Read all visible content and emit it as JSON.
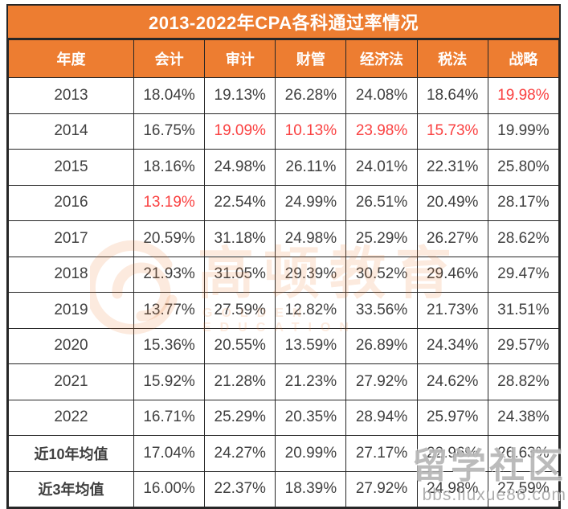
{
  "colors": {
    "accent": "#ED7D31",
    "text": "#404040",
    "red": "#FA4141",
    "border": "#262626",
    "wm_orange": "rgba(237,125,49,0.16)",
    "wm_gray": "rgba(120,120,120,0.5)"
  },
  "chart_data": {
    "type": "table",
    "title": "2013-2022年CPA各科通过率情况",
    "columns": [
      "年度",
      "会计",
      "审计",
      "财管",
      "经济法",
      "税法",
      "战略"
    ],
    "rows": [
      {
        "label": "2013",
        "values": [
          "18.04%",
          "19.13%",
          "26.28%",
          "24.08%",
          "18.64%",
          "19.98%"
        ],
        "red": [
          5
        ],
        "bold": false
      },
      {
        "label": "2014",
        "values": [
          "16.75%",
          "19.09%",
          "10.13%",
          "23.98%",
          "15.73%",
          "19.99%"
        ],
        "red": [
          1,
          2,
          3,
          4
        ],
        "bold": false
      },
      {
        "label": "2015",
        "values": [
          "18.16%",
          "24.98%",
          "26.11%",
          "24.01%",
          "22.31%",
          "25.80%"
        ],
        "red": [],
        "bold": false
      },
      {
        "label": "2016",
        "values": [
          "13.19%",
          "22.54%",
          "24.99%",
          "26.51%",
          "20.49%",
          "28.17%"
        ],
        "red": [
          0
        ],
        "bold": false
      },
      {
        "label": "2017",
        "values": [
          "20.59%",
          "31.18%",
          "24.98%",
          "25.29%",
          "26.27%",
          "28.62%"
        ],
        "red": [],
        "bold": false
      },
      {
        "label": "2018",
        "values": [
          "21.93%",
          "31.05%",
          "29.39%",
          "30.52%",
          "29.46%",
          "29.47%"
        ],
        "red": [],
        "bold": false
      },
      {
        "label": "2019",
        "values": [
          "13.77%",
          "27.59%",
          "12.82%",
          "33.56%",
          "21.73%",
          "31.51%"
        ],
        "red": [],
        "bold": false
      },
      {
        "label": "2020",
        "values": [
          "15.36%",
          "20.55%",
          "13.59%",
          "26.89%",
          "24.34%",
          "29.57%"
        ],
        "red": [],
        "bold": false
      },
      {
        "label": "2021",
        "values": [
          "15.92%",
          "21.28%",
          "21.23%",
          "27.92%",
          "24.62%",
          "28.82%"
        ],
        "red": [],
        "bold": false
      },
      {
        "label": "2022",
        "values": [
          "16.71%",
          "25.29%",
          "20.35%",
          "28.94%",
          "25.97%",
          "24.38%"
        ],
        "red": [],
        "bold": false
      },
      {
        "label": "近10年均值",
        "values": [
          "17.04%",
          "24.27%",
          "20.99%",
          "27.17%",
          "22.96%",
          "26.63%"
        ],
        "red": [],
        "bold": true
      },
      {
        "label": "近3年均值",
        "values": [
          "16.00%",
          "22.37%",
          "18.39%",
          "27.92%",
          "24.98%",
          "27.59%"
        ],
        "red": [],
        "bold": true
      }
    ],
    "legend_note": "red cells mark the lowest pass rate of each subject column"
  },
  "watermarks": {
    "center": {
      "icon": "gaodun-logo",
      "text": "高顿教育",
      "subtext": "GOLDEN EDUCATION"
    },
    "corner": {
      "text": "留学社区",
      "subtext": "bbs.liuxue86.com"
    }
  }
}
